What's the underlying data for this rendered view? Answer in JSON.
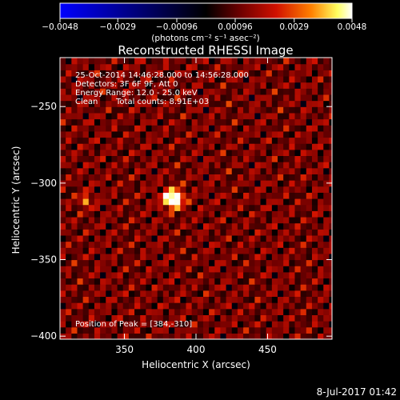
{
  "chart_data": {
    "type": "heatmap",
    "title": "Reconstructed RHESSI Image",
    "xlabel": "Heliocentric X (arcsec)",
    "ylabel": "Heliocentric Y (arcsec)",
    "xlim": [
      305,
      495
    ],
    "ylim": [
      -402,
      -218
    ],
    "xticks": [
      {
        "value": 350,
        "label": "350"
      },
      {
        "value": 400,
        "label": "400"
      },
      {
        "value": 450,
        "label": "450"
      }
    ],
    "yticks": [
      {
        "value": -250,
        "label": "−250"
      },
      {
        "value": -300,
        "label": "−300"
      },
      {
        "value": -350,
        "label": "−350"
      },
      {
        "value": -400,
        "label": "−400"
      }
    ],
    "colorbar": {
      "min": -0.0048,
      "max": 0.0048,
      "ticks": [
        {
          "value": -0.0048,
          "label": "−0.0048"
        },
        {
          "value": -0.0029,
          "label": "−0.0029"
        },
        {
          "value": -0.00096,
          "label": "−0.00096"
        },
        {
          "value": 0.00096,
          "label": "0.00096"
        },
        {
          "value": 0.0029,
          "label": "0.0029"
        },
        {
          "value": 0.0048,
          "label": "0.0048"
        }
      ],
      "unit_label": "(photons cm⁻² s⁻¹ asec⁻²)"
    },
    "annotations": [
      "25-Oct-2014 14:46:28.000 to 14:56:28.000",
      "Detectors: 3F 6F 9F, Att 0",
      "Energy Range: 12.0 - 25.0 keV",
      "Clean",
      "Total counts: 8.91E+03"
    ],
    "peak_label": "Position of Peak = [384,-310]",
    "peak": {
      "x": 384,
      "y": -310,
      "value": 0.0048
    },
    "secondary_source": {
      "x": 323,
      "y": -311,
      "value": 0.0024
    },
    "colormap": [
      "#0000ff",
      "#000000",
      "#700000",
      "#d01000",
      "#ff8000",
      "#ffff60",
      "#ffffff"
    ]
  },
  "timestamp": "8-Jul-2017 01:42"
}
